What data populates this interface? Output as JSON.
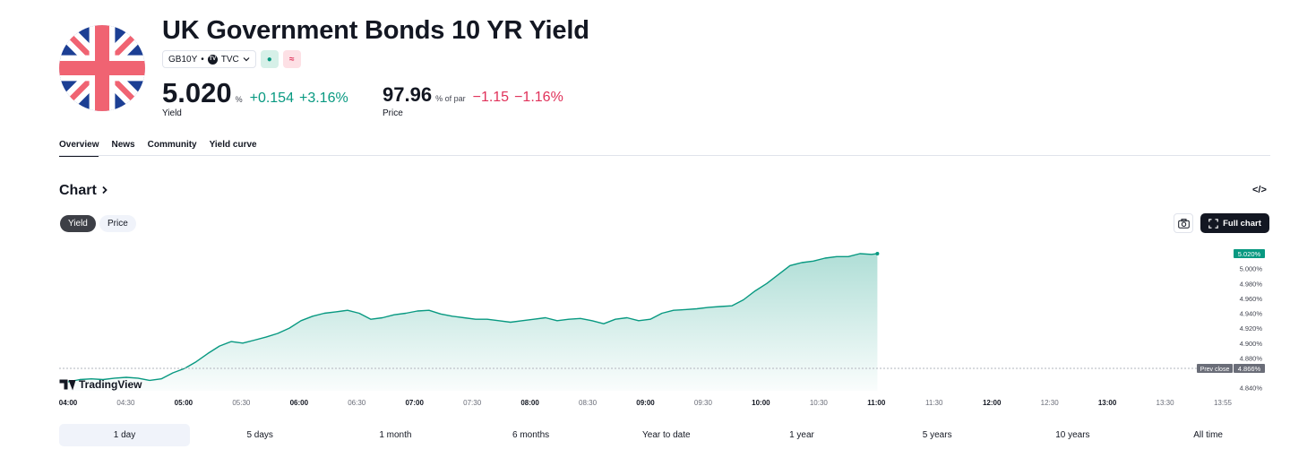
{
  "header": {
    "title": "UK Government Bonds 10 YR Yield",
    "symbol": "GB10Y",
    "separator": "•",
    "exchange": "TVC",
    "tv_badge": "TV",
    "status_badge": "●",
    "approx_badge": "≈"
  },
  "quote": {
    "yield_value": "5.020",
    "yield_unit": "%",
    "yield_change": "+0.154",
    "yield_change_pct": "+3.16%",
    "yield_label": "Yield",
    "price_value": "97.96",
    "price_unit": "% of par",
    "price_change": "−1.15",
    "price_change_pct": "−1.16%",
    "price_label": "Price"
  },
  "tabs": [
    "Overview",
    "News",
    "Community",
    "Yield curve"
  ],
  "chart_section": {
    "heading": "Chart",
    "embed_icon": "</>",
    "toggle_yield": "Yield",
    "toggle_price": "Price",
    "full_chart_label": "Full chart",
    "camera_icon": "camera-icon",
    "fullscreen_icon": "fullscreen-icon"
  },
  "chart_data": {
    "type": "area",
    "title": "",
    "xlabel": "",
    "ylabel": "",
    "x_ticks": [
      {
        "label": "04:00",
        "bold": true
      },
      {
        "label": "04:30",
        "bold": false
      },
      {
        "label": "05:00",
        "bold": true
      },
      {
        "label": "05:30",
        "bold": false
      },
      {
        "label": "06:00",
        "bold": true
      },
      {
        "label": "06:30",
        "bold": false
      },
      {
        "label": "07:00",
        "bold": true
      },
      {
        "label": "07:30",
        "bold": false
      },
      {
        "label": "08:00",
        "bold": true
      },
      {
        "label": "08:30",
        "bold": false
      },
      {
        "label": "09:00",
        "bold": true
      },
      {
        "label": "09:30",
        "bold": false
      },
      {
        "label": "10:00",
        "bold": true
      },
      {
        "label": "10:30",
        "bold": false
      },
      {
        "label": "11:00",
        "bold": true
      },
      {
        "label": "11:30",
        "bold": false
      },
      {
        "label": "12:00",
        "bold": true
      },
      {
        "label": "12:30",
        "bold": false
      },
      {
        "label": "13:00",
        "bold": true
      },
      {
        "label": "13:30",
        "bold": false
      },
      {
        "label": "13:55",
        "bold": false
      }
    ],
    "y_ticks": [
      "5.000%",
      "4.980%",
      "4.960%",
      "4.940%",
      "4.920%",
      "4.900%",
      "4.880%",
      "4.840%"
    ],
    "ylim": [
      4.836,
      5.026
    ],
    "x_range_hours": [
      4.0,
      13.9167
    ],
    "last_value": 5.02,
    "last_label": "5.020%",
    "prev_close": 4.866,
    "prev_close_label": "Prev close",
    "prev_close_value_label": "4.866%",
    "watermark": "TradingView",
    "line_color": "#089981",
    "series": [
      {
        "x": [
          4.0,
          4.1,
          4.2,
          4.3,
          4.4,
          4.5,
          4.6,
          4.7,
          4.8,
          4.9,
          5.0,
          5.1,
          5.2,
          5.3,
          5.4,
          5.5,
          5.6,
          5.7,
          5.8,
          5.9,
          6.0,
          6.1,
          6.2,
          6.3,
          6.4,
          6.5,
          6.6,
          6.7,
          6.8,
          6.9,
          7.0,
          7.1,
          7.2,
          7.3,
          7.4,
          7.5,
          7.6,
          7.7,
          7.8,
          7.9,
          8.0,
          8.1,
          8.2,
          8.3,
          8.4,
          8.5,
          8.6,
          8.7,
          8.8,
          8.9,
          9.0,
          9.1,
          9.2,
          9.3,
          9.4,
          9.5,
          9.6,
          9.7,
          9.8,
          9.9,
          10.0,
          10.1,
          10.2,
          10.3,
          10.4,
          10.5,
          10.6,
          10.7,
          10.8,
          10.9,
          10.95
        ],
        "y": [
          4.848,
          4.851,
          4.852,
          4.851,
          4.853,
          4.854,
          4.853,
          4.85,
          4.852,
          4.86,
          4.866,
          4.875,
          4.886,
          4.896,
          4.902,
          4.9,
          4.904,
          4.908,
          4.913,
          4.92,
          4.93,
          4.936,
          4.94,
          4.942,
          4.944,
          4.94,
          4.932,
          4.934,
          4.938,
          4.94,
          4.943,
          4.944,
          4.939,
          4.936,
          4.934,
          4.932,
          4.932,
          4.93,
          4.928,
          4.93,
          4.932,
          4.934,
          4.93,
          4.932,
          4.933,
          4.93,
          4.926,
          4.932,
          4.934,
          4.93,
          4.932,
          4.94,
          4.944,
          4.945,
          4.946,
          4.948,
          4.949,
          4.95,
          4.958,
          4.97,
          4.98,
          4.992,
          5.004,
          5.008,
          5.01,
          5.014,
          5.016,
          5.016,
          5.02,
          5.019,
          5.02
        ]
      }
    ]
  },
  "ranges": [
    "1 day",
    "5 days",
    "1 month",
    "6 months",
    "Year to date",
    "1 year",
    "5 years",
    "10 years",
    "All time"
  ],
  "colors": {
    "accent_green": "#089981",
    "negative_red": "#e0325a",
    "flag_blue": "#1c3f94",
    "flag_red": "#f06372"
  }
}
